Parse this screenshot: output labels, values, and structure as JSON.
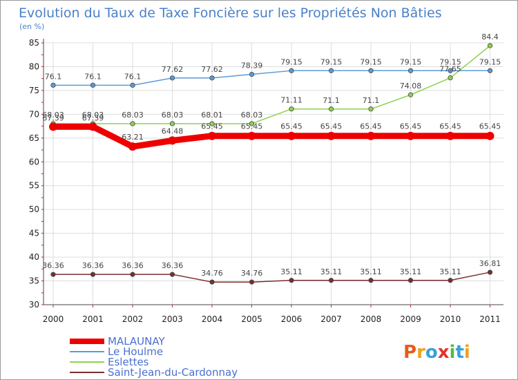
{
  "chart_data": {
    "type": "line",
    "title": "Evolution du Taux de Taxe Foncière sur les Propriétés Non Bâties",
    "ylabel": "(en %)",
    "xlabel": "",
    "ylim": [
      30,
      85
    ],
    "yticks": [
      30,
      35,
      40,
      45,
      50,
      55,
      60,
      65,
      70,
      75,
      80,
      85
    ],
    "categories": [
      "2000",
      "2001",
      "2002",
      "2003",
      "2004",
      "2005",
      "2006",
      "2007",
      "2008",
      "2009",
      "2010",
      "2011"
    ],
    "series": [
      {
        "name": "MALAUNAY",
        "color": "#ee0000",
        "values": [
          67.39,
          67.39,
          63.21,
          64.48,
          65.45,
          65.45,
          65.45,
          65.45,
          65.45,
          65.45,
          65.45,
          65.45
        ],
        "labels": [
          "67.39",
          "67.39",
          "63.21",
          "64.48",
          "65.45",
          "65.45",
          "65.45",
          "65.45",
          "65.45",
          "65.45",
          "65.45",
          "65.45"
        ]
      },
      {
        "name": "Le Houlme",
        "color": "#5b9bd5",
        "values": [
          76.1,
          76.1,
          76.1,
          77.62,
          77.62,
          78.39,
          79.15,
          79.15,
          79.15,
          79.15,
          79.15,
          79.15
        ],
        "labels": [
          "76.1",
          "76.1",
          "76.1",
          "77.62",
          "77.62",
          "78.39",
          "79.15",
          "79.15",
          "79.15",
          "79.15",
          "79.15",
          "79.15"
        ]
      },
      {
        "name": "Eslettes",
        "color": "#8fd14f",
        "values": [
          68.03,
          68.03,
          68.03,
          68.03,
          68.01,
          68.03,
          71.11,
          71.1,
          71.1,
          74.08,
          77.65,
          84.4
        ],
        "labels": [
          "68.03",
          "68.03",
          "68.03",
          "68.03",
          "68.01",
          "68.03",
          "71.11",
          "71.1",
          "71.1",
          "74.08",
          "77.65",
          "84.4"
        ]
      },
      {
        "name": "Saint-Jean-du-Cardonnay",
        "color": "#7b2e2e",
        "values": [
          36.36,
          36.36,
          36.36,
          36.36,
          34.76,
          34.76,
          35.11,
          35.11,
          35.11,
          35.11,
          35.11,
          36.81
        ],
        "labels": [
          "36.36",
          "36.36",
          "36.36",
          "36.36",
          "34.76",
          "34.76",
          "35.11",
          "35.11",
          "35.11",
          "35.11",
          "35.11",
          "36.81"
        ]
      }
    ],
    "grid": true,
    "legend": "bottom-left"
  },
  "brand": {
    "text": "Proxiti"
  }
}
